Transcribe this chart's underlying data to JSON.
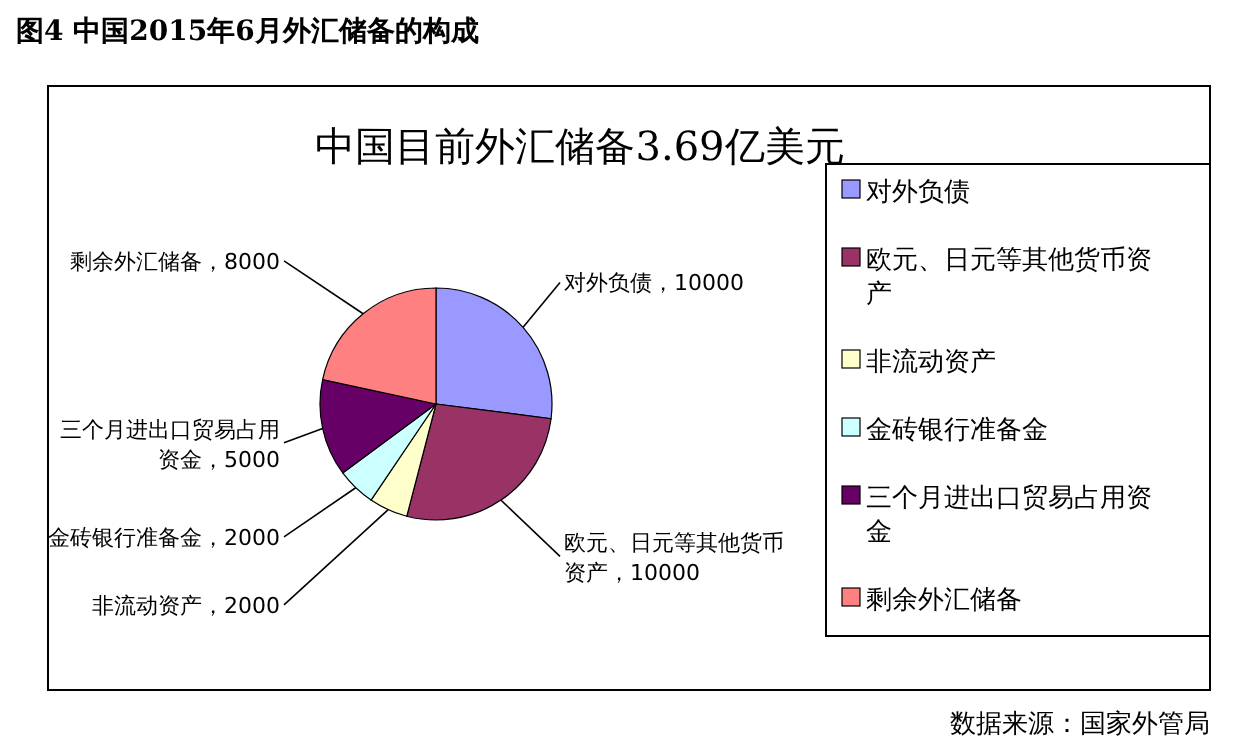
{
  "chart_data": {
    "type": "pie",
    "title": "中国目前外汇储备3.69亿美元",
    "categories": [
      "对外负债",
      "欧元、日元等其他货币资产",
      "非流动资产",
      "金砖银行准备金",
      "三个月进出口贸易占用资金",
      "剩余外汇储备"
    ],
    "values": [
      10000,
      10000,
      2000,
      2000,
      5000,
      8000
    ],
    "colors": [
      "#9999ff",
      "#993366",
      "#ffffcc",
      "#ccffff",
      "#660066",
      "#ff8080"
    ],
    "value_labels": [
      "对外负债，10000",
      "欧元、日元等其他货币资产，10000",
      "非流动资产，2000",
      "金砖银行准备金，2000",
      "三个月进出口贸易占用资金，5000",
      "剩余外汇储备，8000"
    ],
    "legend": "right",
    "annotations": [
      "图4  中国2015年6月外汇储备的构成",
      "数据来源：国家外管局"
    ]
  }
}
